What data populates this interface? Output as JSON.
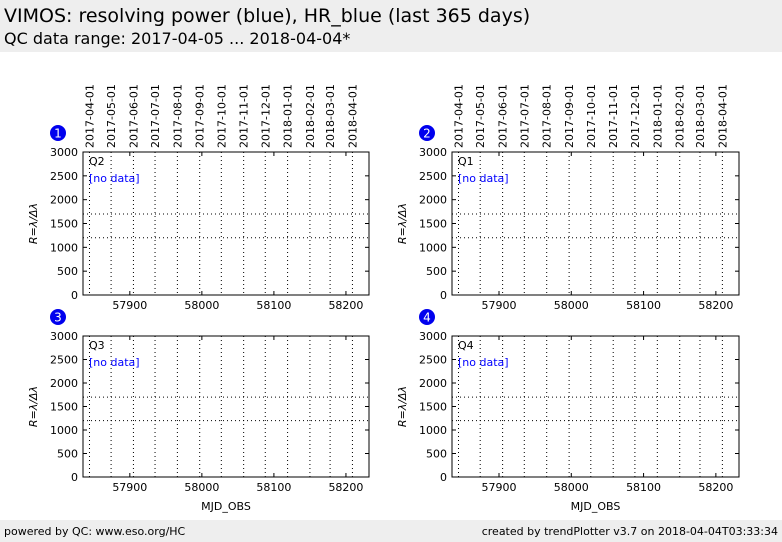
{
  "header": {
    "title": "VIMOS: resolving power (blue), HR_blue (last 365 days)",
    "subtitle": "QC data range: 2017-04-05 ... 2018-04-04*"
  },
  "footer": {
    "left": "powered by QC: www.eso.org/HC",
    "right": "created by trendPlotter v3.7 on 2018-04-04T03:33:34"
  },
  "colors": {
    "badge": "#0000ee",
    "no_data": "#0000ff",
    "header_bg": "#eeeeee"
  },
  "chart_data": [
    {
      "type": "scatter",
      "badge": "1",
      "quadrant": "Q2",
      "note": "[no data]",
      "ylabel": "R=λ/Δλ",
      "xlabel": "",
      "xlim": [
        57835,
        58232
      ],
      "ylim": [
        0,
        3000
      ],
      "yticks": [
        "0",
        "500",
        "1000",
        "1500",
        "2000",
        "2500",
        "3000"
      ],
      "xticks": [
        "57900",
        "58000",
        "58100",
        "58200"
      ],
      "date_ticks": [],
      "reference_lines": [
        1200,
        1700
      ],
      "series": []
    },
    {
      "type": "scatter",
      "badge": "2",
      "quadrant": "Q1",
      "note": "[no data]",
      "ylabel": "R=λ/Δλ",
      "xlabel": "",
      "xlim": [
        57835,
        58232
      ],
      "ylim": [
        0,
        3000
      ],
      "yticks": [
        "0",
        "500",
        "1000",
        "1500",
        "2000",
        "2500",
        "3000"
      ],
      "xticks": [
        "57900",
        "58000",
        "58100",
        "58200"
      ],
      "date_ticks": [],
      "reference_lines": [
        1200,
        1700
      ],
      "series": []
    },
    {
      "type": "scatter",
      "badge": "3",
      "quadrant": "Q3",
      "note": "[no data]",
      "ylabel": "R=λ/Δλ",
      "xlabel": "MJD_OBS",
      "xlim": [
        57835,
        58232
      ],
      "ylim": [
        0,
        3000
      ],
      "yticks": [
        "0",
        "500",
        "1000",
        "1500",
        "2000",
        "2500",
        "3000"
      ],
      "xticks": [
        "57900",
        "58000",
        "58100",
        "58200"
      ],
      "date_ticks": [],
      "reference_lines": [
        1200,
        1700
      ],
      "series": []
    },
    {
      "type": "scatter",
      "badge": "4",
      "quadrant": "Q4",
      "note": "[no data]",
      "ylabel": "R=λ/Δλ",
      "xlabel": "MJD_OBS",
      "xlim": [
        57835,
        58232
      ],
      "ylim": [
        0,
        3000
      ],
      "yticks": [
        "0",
        "500",
        "1000",
        "1500",
        "2000",
        "2500",
        "3000"
      ],
      "xticks": [
        "57900",
        "58000",
        "58100",
        "58200"
      ],
      "date_ticks": [],
      "reference_lines": [
        1200,
        1700
      ],
      "series": []
    }
  ],
  "date_axis": {
    "ticks": [
      {
        "label": "2017-04-01",
        "mjd": 57844
      },
      {
        "label": "2017-05-01",
        "mjd": 57874
      },
      {
        "label": "2017-06-01",
        "mjd": 57905
      },
      {
        "label": "2017-07-01",
        "mjd": 57935
      },
      {
        "label": "2017-08-01",
        "mjd": 57966
      },
      {
        "label": "2017-09-01",
        "mjd": 57997
      },
      {
        "label": "2017-10-01",
        "mjd": 58027
      },
      {
        "label": "2017-11-01",
        "mjd": 58058
      },
      {
        "label": "2017-12-01",
        "mjd": 58088
      },
      {
        "label": "2018-01-01",
        "mjd": 58119
      },
      {
        "label": "2018-02-01",
        "mjd": 58150
      },
      {
        "label": "2018-03-01",
        "mjd": 58178
      },
      {
        "label": "2018-04-01",
        "mjd": 58209
      }
    ]
  }
}
